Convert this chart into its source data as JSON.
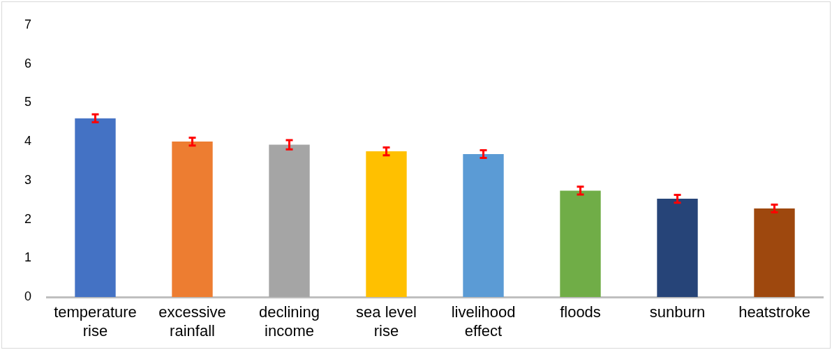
{
  "chart_data": {
    "type": "bar",
    "categories": [
      "temperature rise",
      "excessive rainfall",
      "declining income",
      "sea level rise",
      "livelihood effect",
      "floods",
      "sunburn",
      "heatstroke"
    ],
    "values": [
      4.6,
      4.0,
      3.92,
      3.75,
      3.68,
      2.74,
      2.53,
      2.28
    ],
    "colors": [
      "#4472c4",
      "#ed7d31",
      "#a5a5a5",
      "#ffc000",
      "#5b9bd5",
      "#70ad47",
      "#264478",
      "#9e480e"
    ],
    "errors": [
      0.1,
      0.1,
      0.12,
      0.1,
      0.1,
      0.1,
      0.1,
      0.1
    ],
    "ylim": [
      0,
      7
    ],
    "yticks": [
      0,
      1,
      2,
      3,
      4,
      5,
      6,
      7
    ],
    "grid": false,
    "legend": false
  }
}
